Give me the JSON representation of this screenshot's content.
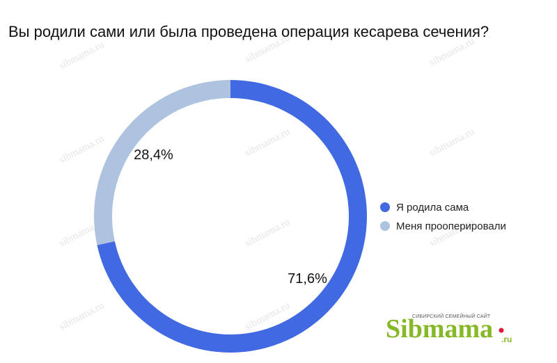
{
  "chart_data": {
    "type": "pie",
    "title": "Вы родили сами или была проведена операция кесарева сечения?",
    "categories": [
      "Я родила сама",
      "Меня прооперировали"
    ],
    "values": [
      71.6,
      28.4
    ],
    "labels": [
      "71,6%",
      "28,4%"
    ],
    "colors": [
      "#4169e1",
      "#aec3df"
    ],
    "donut": true,
    "legend_position": "right"
  },
  "watermark": "sibmama.ru",
  "logo": {
    "tagline": "СИБИРСКИЙ СЕМЕЙНЫЙ САЙТ",
    "name": "Sibmama",
    "suffix": ".ru",
    "accent_color": "#86b827",
    "dot_color": "#e0193a"
  }
}
